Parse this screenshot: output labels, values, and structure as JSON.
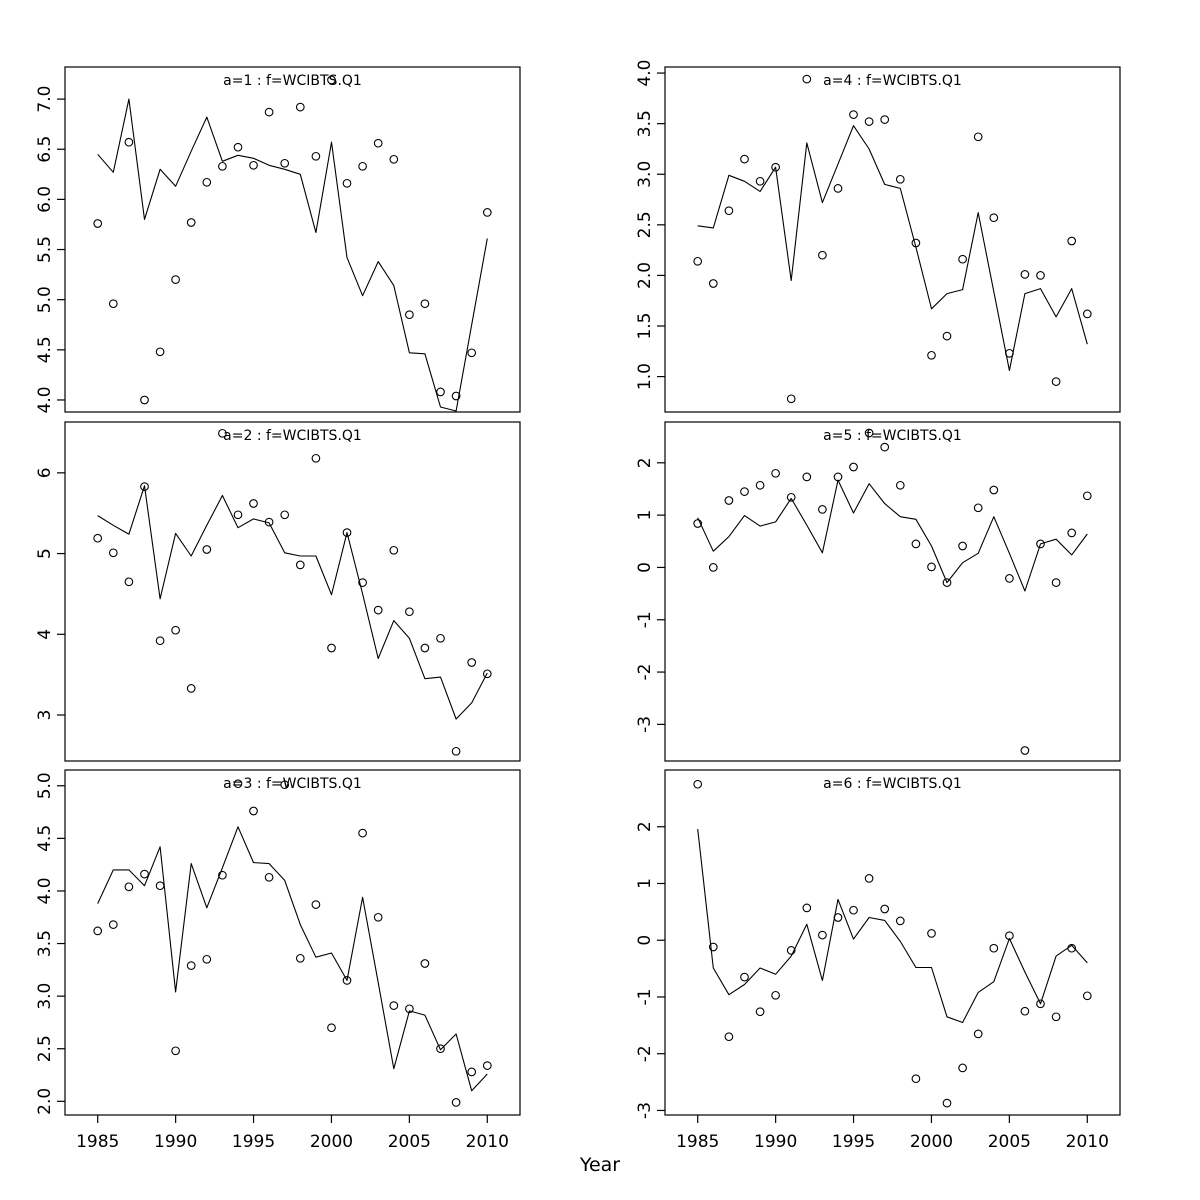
{
  "chart_data": {
    "type": "line",
    "description": "Six-panel R base-graphics plot: model fit lines with observed index points by age, survey WCIBTS.Q1",
    "xlabel": "Year",
    "xlim": [
      1982.9,
      2012.1
    ],
    "x_ticks": [
      1985,
      1990,
      1995,
      2000,
      2005,
      2010
    ],
    "x_tick_labels": [
      "1985",
      "1990",
      "1995",
      "2000",
      "2005",
      "2010"
    ],
    "years": [
      1985,
      1986,
      1987,
      1988,
      1989,
      1990,
      1991,
      1992,
      1993,
      1994,
      1995,
      1996,
      1997,
      1998,
      1999,
      2000,
      2001,
      2002,
      2003,
      2004,
      2005,
      2006,
      2007,
      2008,
      2009,
      2010
    ],
    "grid": false,
    "legend": "none",
    "style": {
      "line_color": "#000000",
      "point_color": "#000000",
      "frame_color": "#000000",
      "title_color": "#7e7e7e",
      "background": "#ffffff"
    },
    "panels": [
      {
        "id": "a1",
        "title": "a=1 : f=WCIBTS.Q1",
        "col": 0,
        "row": 0,
        "ylim": [
          3.88,
          7.32
        ],
        "yticks": [
          4.0,
          4.5,
          5.0,
          5.5,
          6.0,
          6.5,
          7.0
        ],
        "ytick_labels": [
          "4.0",
          "4.5",
          "5.0",
          "5.5",
          "6.0",
          "6.5",
          "7.0"
        ],
        "line": [
          6.45,
          6.27,
          7.0,
          5.8,
          6.3,
          6.13,
          6.48,
          6.82,
          6.38,
          6.44,
          6.41,
          6.34,
          6.3,
          6.25,
          5.67,
          6.57,
          5.42,
          5.04,
          5.38,
          5.14,
          4.47,
          4.46,
          3.93,
          3.89,
          4.75,
          5.61
        ],
        "points": [
          5.76,
          4.96,
          6.57,
          4.0,
          4.48,
          5.2,
          5.77,
          6.17,
          6.33,
          6.52,
          6.34,
          6.87,
          6.36,
          6.92,
          6.43,
          7.19,
          6.16,
          6.33,
          6.56,
          6.4,
          4.85,
          4.96,
          4.08,
          4.04,
          4.47,
          5.87
        ]
      },
      {
        "id": "a2",
        "title": "a=2 : f=WCIBTS.Q1",
        "col": 0,
        "row": 1,
        "ylim": [
          2.43,
          6.63
        ],
        "yticks": [
          3,
          4,
          5,
          6
        ],
        "ytick_labels": [
          "3",
          "4",
          "5",
          "6"
        ],
        "line": [
          5.47,
          5.35,
          5.24,
          5.84,
          4.44,
          5.25,
          4.97,
          5.35,
          5.72,
          5.32,
          5.43,
          5.38,
          5.01,
          4.97,
          4.97,
          4.49,
          5.26,
          4.5,
          3.7,
          4.17,
          3.95,
          3.45,
          3.47,
          2.95,
          3.15,
          3.52
        ],
        "points": [
          5.19,
          5.01,
          4.65,
          5.83,
          3.92,
          4.05,
          3.33,
          5.05,
          6.49,
          5.48,
          5.62,
          5.39,
          5.48,
          4.86,
          6.18,
          3.83,
          5.26,
          4.64,
          4.3,
          5.04,
          4.28,
          3.83,
          3.95,
          2.55,
          3.65,
          3.51
        ]
      },
      {
        "id": "a3",
        "title": "a=3 : f=WCIBTS.Q1",
        "col": 0,
        "row": 2,
        "ylim": [
          1.87,
          5.15
        ],
        "yticks": [
          2.0,
          2.5,
          3.0,
          3.5,
          4.0,
          4.5,
          5.0
        ],
        "ytick_labels": [
          "2.0",
          "2.5",
          "3.0",
          "3.5",
          "4.0",
          "4.5",
          "5.0"
        ],
        "line": [
          3.88,
          4.2,
          4.2,
          4.05,
          4.42,
          3.04,
          4.26,
          3.84,
          4.22,
          4.61,
          4.27,
          4.26,
          4.1,
          3.68,
          3.37,
          3.41,
          3.15,
          3.94,
          3.13,
          2.31,
          2.86,
          2.82,
          2.49,
          2.64,
          2.1,
          2.26
        ],
        "points": [
          3.62,
          3.68,
          4.04,
          4.16,
          4.05,
          2.48,
          3.29,
          3.35,
          4.15,
          5.02,
          4.76,
          4.13,
          5.01,
          3.36,
          3.87,
          2.7,
          3.15,
          4.55,
          3.75,
          2.91,
          2.88,
          3.31,
          2.5,
          1.99,
          2.28,
          2.34
        ]
      },
      {
        "id": "a4",
        "title": "a=4 : f=WCIBTS.Q1",
        "col": 1,
        "row": 0,
        "ylim": [
          0.65,
          4.06
        ],
        "yticks": [
          1.0,
          1.5,
          2.0,
          2.5,
          3.0,
          3.5,
          4.0
        ],
        "ytick_labels": [
          "1.0",
          "1.5",
          "2.0",
          "2.5",
          "3.0",
          "3.5",
          "4.0"
        ],
        "line": [
          2.49,
          2.47,
          2.99,
          2.93,
          2.83,
          3.07,
          1.95,
          3.31,
          2.72,
          3.1,
          3.48,
          3.25,
          2.9,
          2.86,
          2.28,
          1.67,
          1.82,
          1.86,
          2.62,
          1.84,
          1.06,
          1.82,
          1.87,
          1.59,
          1.87,
          1.32
        ],
        "points": [
          2.14,
          1.92,
          2.64,
          3.15,
          2.93,
          3.07,
          0.78,
          3.94,
          2.2,
          2.86,
          3.59,
          3.52,
          3.54,
          2.95,
          2.32,
          1.21,
          1.4,
          2.16,
          3.37,
          2.57,
          1.23,
          2.01,
          2.0,
          0.95,
          2.34,
          1.62
        ]
      },
      {
        "id": "a5",
        "title": "a=5 : f=WCIBTS.Q1",
        "col": 1,
        "row": 1,
        "ylim": [
          -3.7,
          2.78
        ],
        "yticks": [
          -3,
          -2,
          -1,
          0,
          1,
          2
        ],
        "ytick_labels": [
          "-3",
          "-2",
          "-1",
          "0",
          "1",
          "2"
        ],
        "line": [
          0.95,
          0.31,
          0.59,
          0.99,
          0.79,
          0.87,
          1.32,
          0.81,
          0.28,
          1.67,
          1.04,
          1.6,
          1.22,
          0.97,
          0.92,
          0.41,
          -0.29,
          0.09,
          0.27,
          0.97,
          0.27,
          -0.45,
          0.45,
          0.54,
          0.24,
          0.64
        ],
        "points": [
          0.84,
          0.0,
          1.28,
          1.45,
          1.57,
          1.8,
          1.34,
          1.73,
          1.11,
          1.73,
          1.92,
          2.57,
          2.3,
          1.57,
          0.45,
          0.01,
          -0.29,
          0.41,
          1.14,
          1.48,
          -0.21,
          -3.5,
          0.45,
          -0.29,
          0.66,
          1.37
        ]
      },
      {
        "id": "a6",
        "title": "a=6 : f=WCIBTS.Q1",
        "col": 1,
        "row": 2,
        "ylim": [
          -3.08,
          3.0
        ],
        "yticks": [
          -3,
          -2,
          -1,
          0,
          1,
          2
        ],
        "ytick_labels": [
          "-3",
          "-2",
          "-1",
          "0",
          "1",
          "2"
        ],
        "line": [
          1.96,
          -0.49,
          -0.96,
          -0.78,
          -0.49,
          -0.6,
          -0.28,
          0.28,
          -0.71,
          0.72,
          0.02,
          0.4,
          0.35,
          -0.02,
          -0.48,
          -0.48,
          -1.35,
          -1.45,
          -0.92,
          -0.73,
          0.03,
          -0.56,
          -1.12,
          -0.28,
          -0.09,
          -0.4
        ],
        "points": [
          2.75,
          -0.12,
          -1.7,
          -0.65,
          -1.26,
          -0.97,
          -0.18,
          0.57,
          0.09,
          0.4,
          0.53,
          1.09,
          0.55,
          0.34,
          -2.44,
          0.12,
          -2.87,
          -2.25,
          -1.65,
          -0.14,
          0.08,
          -1.25,
          -1.12,
          -1.35,
          -0.14,
          -0.98
        ]
      }
    ]
  }
}
